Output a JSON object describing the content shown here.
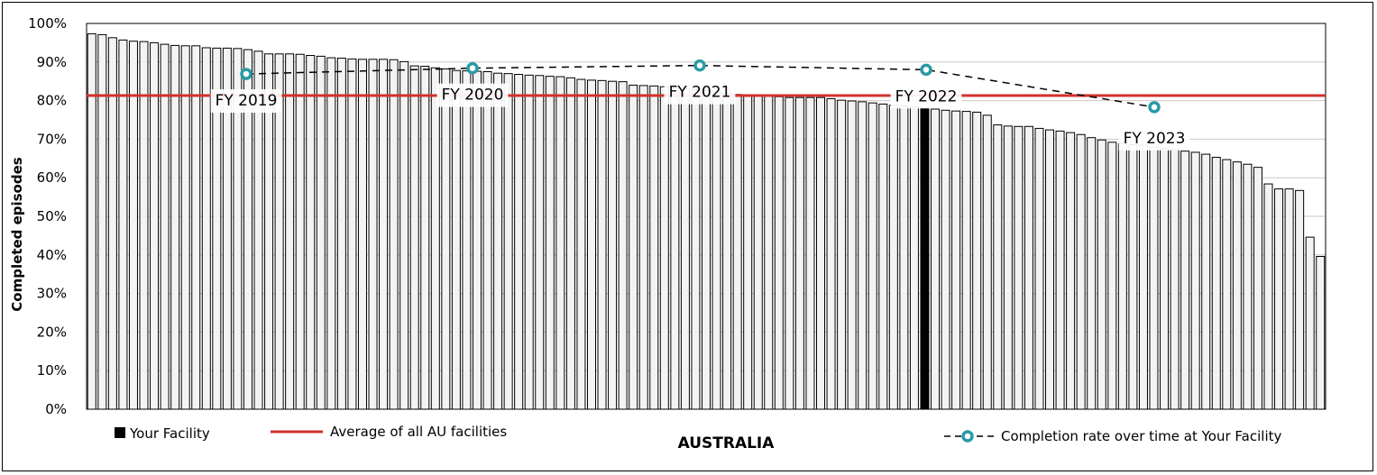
{
  "chart_data": {
    "type": "bar",
    "title": "",
    "ylabel": "Completed episodes",
    "xlabel": "AUSTRALIA",
    "ylim": [
      0,
      100
    ],
    "yticks": [
      "0%",
      "10%",
      "20%",
      "30%",
      "40%",
      "50%",
      "60%",
      "70%",
      "80%",
      "90%",
      "100%"
    ],
    "grid": true,
    "series": [
      {
        "name": "facilities",
        "values": [
          97.3,
          97.1,
          96.3,
          95.7,
          95.4,
          95.3,
          95.0,
          94.6,
          94.3,
          94.2,
          94.2,
          93.7,
          93.6,
          93.6,
          93.5,
          93.2,
          92.8,
          92.1,
          92.1,
          92.1,
          92.0,
          91.7,
          91.5,
          91.1,
          91.0,
          90.8,
          90.7,
          90.7,
          90.7,
          90.6,
          90.1,
          89.0,
          88.9,
          88.5,
          88.2,
          87.8,
          87.7,
          87.6,
          87.5,
          87.1,
          87.0,
          86.8,
          86.6,
          86.5,
          86.3,
          86.2,
          85.9,
          85.5,
          85.3,
          85.2,
          85.0,
          84.9,
          84.0,
          83.9,
          83.8,
          83.6,
          83.4,
          83.1,
          82.8,
          82.6,
          82.3,
          81.9,
          81.6,
          81.3,
          81.2,
          81.1,
          81.0,
          80.8,
          80.8,
          80.8,
          80.8,
          80.5,
          80.1,
          79.9,
          79.7,
          79.4,
          79.1,
          78.8,
          78.6,
          78.4,
          78.1,
          77.8,
          77.5,
          77.3,
          77.2,
          77.0,
          76.2,
          73.7,
          73.4,
          73.3,
          73.3,
          72.8,
          72.4,
          72.1,
          71.7,
          71.2,
          70.4,
          69.8,
          69.2,
          68.8,
          68.6,
          68.4,
          67.9,
          67.6,
          67.3,
          66.9,
          66.6,
          66.1,
          65.3,
          64.7,
          64.1,
          63.5,
          62.7,
          58.4,
          57.1,
          57.1,
          56.7,
          44.6,
          39.6
        ]
      }
    ],
    "highlight_index": 80,
    "reference_line": {
      "name": "Average of all AU facilities",
      "value": 81.3,
      "color": "#d0312d"
    },
    "trend": {
      "name": "Completion rate over time at Your Facility",
      "color": "#2a9aa5",
      "points": [
        {
          "label": "FY 2019",
          "value": 86.9
        },
        {
          "label": "FY 2020",
          "value": 88.4
        },
        {
          "label": "FY 2021",
          "value": 89.1
        },
        {
          "label": "FY 2022",
          "value": 88.0
        },
        {
          "label": "FY 2023",
          "value": 78.3
        }
      ]
    },
    "legend": [
      {
        "name": "Your Facility",
        "kind": "square",
        "color": "#000000"
      },
      {
        "name": "Average of all AU facilities",
        "kind": "line",
        "color": "#d0312d"
      },
      {
        "name": "Completion rate over time at Your Facility",
        "kind": "dashed-marker",
        "color": "#2a9aa5"
      }
    ],
    "legend_position": "bottom"
  }
}
